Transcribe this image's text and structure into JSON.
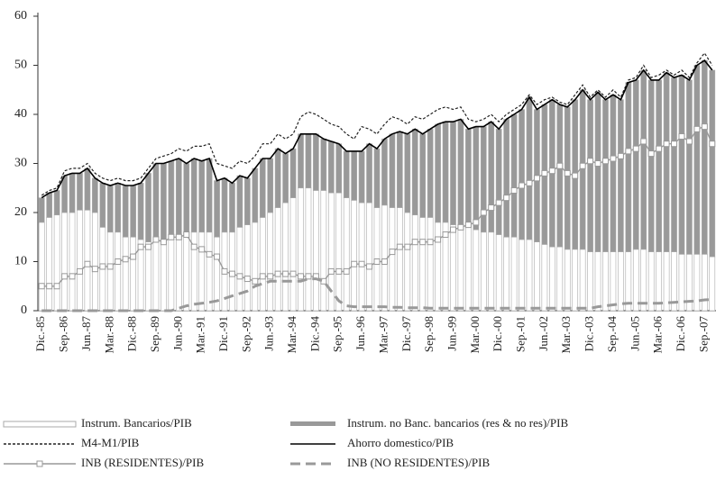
{
  "chart_data": {
    "type": "bar",
    "stacked": true,
    "categories": [
      "Dic.-85",
      null,
      null,
      "Sep.-86",
      null,
      null,
      "Jun.-87",
      null,
      null,
      "Mar.-88",
      null,
      null,
      "Dic.-88",
      null,
      null,
      "Sep.-89",
      null,
      null,
      "Jun.-90",
      null,
      null,
      "Mar.-91",
      null,
      null,
      "Dic.-91",
      null,
      null,
      "Sep.-92",
      null,
      null,
      "Jun.-93",
      null,
      null,
      "Mar.-94",
      null,
      null,
      "Dic.-94",
      null,
      null,
      "Sep.-95",
      null,
      null,
      "Jun.-96",
      null,
      null,
      "Mar.-97",
      null,
      null,
      "Dic.-97",
      null,
      null,
      "Sep.-98",
      null,
      null,
      "Jun.-99",
      null,
      null,
      "Mar.-00",
      null,
      null,
      "Dic.-00",
      null,
      null,
      "Sep.-01",
      null,
      null,
      "Jun.-02",
      null,
      null,
      "Mar.-03",
      null,
      null,
      "Dic.-03",
      null,
      null,
      "Sep.-04",
      null,
      null,
      "Jun.-05",
      null,
      null,
      "Mar.-06",
      null,
      null,
      "Dic.-06",
      null,
      null,
      "Sep.-07",
      null
    ],
    "series": [
      {
        "name": "Instrum. Bancarios/PIB",
        "type": "bar",
        "color": "#ffffff",
        "values": [
          18,
          19,
          19.5,
          20,
          20,
          20.5,
          20.5,
          20,
          17,
          16,
          16,
          15,
          15,
          14.5,
          14,
          14,
          14,
          14.5,
          15,
          15.5,
          16,
          16,
          16,
          15,
          16,
          16,
          17,
          17.5,
          18,
          19,
          20,
          21,
          22,
          23,
          25,
          25,
          24.5,
          24.5,
          24,
          24,
          23,
          22.5,
          22,
          22,
          21,
          21.5,
          21,
          21,
          20,
          19.5,
          19,
          19,
          18,
          18,
          17.5,
          17,
          17,
          16.5,
          16,
          16,
          15.5,
          15,
          15,
          14.5,
          14.5,
          14,
          13.5,
          13,
          13,
          12.5,
          12.5,
          12.5,
          12,
          12,
          12,
          12,
          12,
          12,
          12.5,
          12.5,
          12,
          12,
          12,
          12,
          11.5,
          11.5,
          11.5,
          11.5,
          11
        ]
      },
      {
        "name": "Instrum. no Banc. bancarios  (res & no res)/PIB",
        "type": "bar",
        "color": "#999999",
        "values": [
          5,
          5,
          5,
          7.5,
          8,
          7.5,
          8.5,
          7,
          9,
          9.5,
          10,
          10.5,
          10.5,
          11.5,
          14,
          16,
          16,
          16,
          16,
          14.5,
          15,
          14.5,
          15,
          11.5,
          11,
          10,
          10.5,
          9.5,
          11,
          12,
          11,
          12,
          10,
          10,
          11,
          11,
          11.5,
          10.5,
          10.5,
          10,
          9.5,
          10,
          10.5,
          12,
          12,
          13.5,
          15,
          15.5,
          16,
          17.5,
          17,
          18,
          20,
          20.5,
          21,
          22,
          20,
          21,
          21.5,
          22.5,
          21.5,
          24,
          25,
          26.5,
          29,
          27,
          28.5,
          30,
          29,
          29,
          30.5,
          32.5,
          31,
          32.5,
          31,
          32,
          31,
          34.5,
          34.5,
          36.5,
          35,
          35,
          36.5,
          35.5,
          36.5,
          35.5,
          38.5,
          39.5,
          38
        ]
      },
      {
        "name": "M4-M1/PIB",
        "type": "line",
        "linestyle": "dashed",
        "color": "#222222",
        "values": [
          23.5,
          24.5,
          25,
          28.5,
          29,
          29,
          30,
          28,
          27,
          26.5,
          27,
          26.5,
          26.5,
          27,
          29,
          31,
          31.5,
          32,
          33,
          32.5,
          33.5,
          33.5,
          34,
          30,
          29.5,
          29,
          30.5,
          30,
          31.5,
          34,
          34,
          36,
          35,
          36,
          39.5,
          40.5,
          40,
          39,
          38,
          37.5,
          36,
          35,
          37.5,
          37,
          36,
          38,
          39.5,
          39,
          38,
          39.5,
          39,
          40,
          41,
          41.5,
          41,
          41.5,
          39,
          38.5,
          39,
          40,
          38.5,
          40,
          41,
          42,
          44,
          42,
          43,
          43.5,
          42.5,
          42,
          44,
          46,
          43.5,
          45,
          43.5,
          45,
          43.5,
          47,
          47.5,
          50,
          47.5,
          48,
          49,
          48,
          49,
          47.5,
          50.5,
          52.5,
          50
        ]
      },
      {
        "name": "Ahorro domestico/PIB",
        "type": "line",
        "linestyle": "solid",
        "color": "#000000",
        "values": [
          23,
          24,
          24.5,
          27.5,
          28,
          28,
          29,
          27,
          26,
          25.5,
          26,
          25.5,
          25.5,
          26,
          28,
          30,
          30,
          30.5,
          31,
          30,
          31,
          30.5,
          31,
          26.5,
          27,
          26,
          27.5,
          27,
          29,
          31,
          31,
          33,
          32,
          33,
          36,
          36,
          36,
          35,
          34.5,
          34,
          32.5,
          32.5,
          32.5,
          34,
          33,
          35,
          36,
          36.5,
          36,
          37,
          36,
          37,
          38,
          38.5,
          38.5,
          39,
          37,
          37.5,
          37.5,
          38.5,
          37,
          39,
          40,
          41,
          43.5,
          41,
          42,
          43,
          42,
          41.5,
          43,
          45,
          43,
          44.5,
          43,
          44,
          43,
          46.5,
          47,
          49,
          47,
          47,
          48.5,
          47.5,
          48,
          47,
          50,
          51,
          49
        ]
      },
      {
        "name": "INB (RESIDENTES)/PIB",
        "type": "line",
        "linestyle": "solid",
        "marker": "square",
        "color": "#999999",
        "values": [
          5,
          5,
          5,
          7,
          7,
          8,
          9.5,
          8.5,
          9,
          9,
          10,
          10.5,
          11,
          13,
          13,
          14.5,
          14,
          15,
          15,
          15.5,
          13,
          12.5,
          11.5,
          11,
          8,
          7.5,
          7,
          6.5,
          6,
          7,
          7,
          7.5,
          7.5,
          7.5,
          7,
          7,
          7,
          6,
          8,
          8,
          8,
          9.5,
          9.5,
          9,
          10,
          10,
          12,
          13,
          13,
          14,
          14,
          14,
          14.5,
          15.5,
          16.5,
          17,
          17.5,
          18,
          20,
          21,
          22,
          23,
          24.5,
          25.5,
          26,
          27,
          28,
          28.5,
          29.5,
          28,
          27.5,
          29.5,
          30.5,
          30,
          30.5,
          31,
          31.5,
          32.5,
          33,
          34.5,
          32,
          33,
          34,
          34,
          35.5,
          34.5,
          37,
          37.5,
          34
        ]
      },
      {
        "name": "INB (NO RESIDENTES)/PIB",
        "type": "line",
        "linestyle": "longdash",
        "color": "#999999",
        "values": [
          0,
          0,
          0,
          0,
          0,
          0,
          0,
          0,
          0,
          0,
          0,
          0,
          0,
          0,
          0,
          0,
          0,
          0,
          0.5,
          1,
          1.3,
          1.5,
          1.7,
          2,
          2.5,
          3,
          3.5,
          4,
          5,
          5.5,
          6,
          6,
          6,
          6,
          6,
          6.5,
          6.5,
          6,
          4,
          2,
          1,
          0.8,
          0.8,
          0.8,
          0.8,
          0.8,
          0.7,
          0.7,
          0.6,
          0.6,
          0.6,
          0.5,
          0.5,
          0.5,
          0.5,
          0.5,
          0.5,
          0.5,
          0.5,
          0.5,
          0.5,
          0.5,
          0.5,
          0.5,
          0.5,
          0.5,
          0.5,
          0.5,
          0.5,
          0.5,
          0.5,
          0.5,
          0.5,
          0.8,
          1,
          1.2,
          1.4,
          1.5,
          1.5,
          1.5,
          1.5,
          1.5,
          1.6,
          1.7,
          1.8,
          1.9,
          2,
          2.2,
          2.3
        ]
      }
    ],
    "ylim": [
      0,
      60
    ],
    "yticks": [
      0,
      10,
      20,
      30,
      40,
      50,
      60
    ],
    "grid": false,
    "legend": "bottom"
  }
}
